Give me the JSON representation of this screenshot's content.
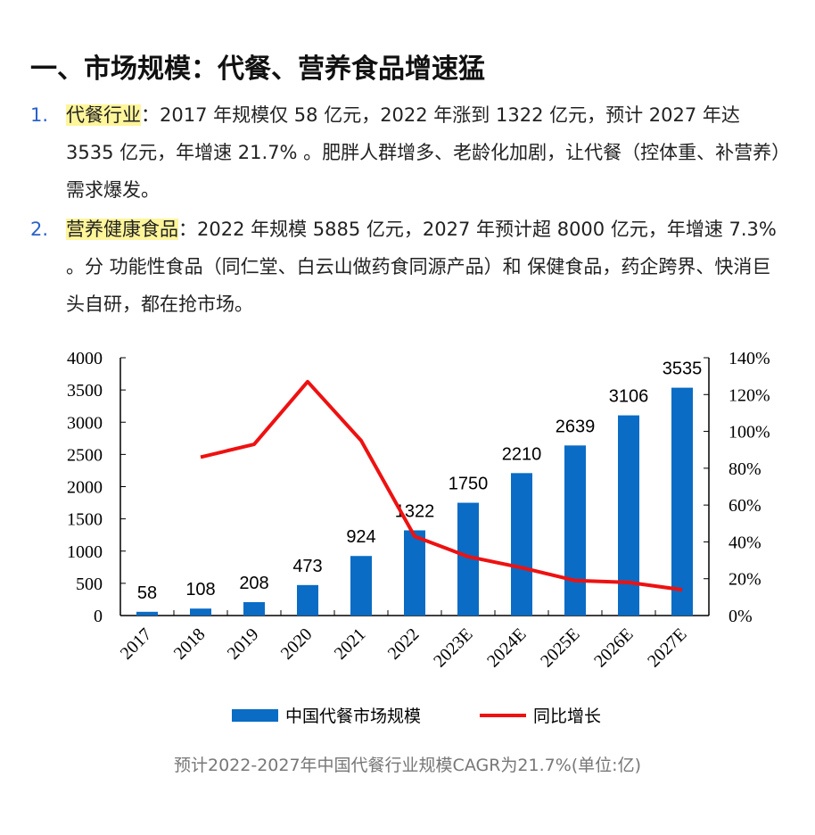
{
  "title": "一、市场规模：代餐、营养食品增速猛",
  "items": [
    {
      "num": "1.",
      "highlight": "代餐行业",
      "text": "：2017 年规模仅 58 亿元，2022 年涨到 1322 亿元，预计 2027 年达 3535 亿元，年增速 21.7% 。肥胖人群增多、老龄化加剧，让代餐（控体重、补营养）需求爆发。"
    },
    {
      "num": "2.",
      "highlight": "营养健康食品",
      "text": "：2022 年规模 5885 亿元，2027 年预计超 8000 亿元，年增速 7.3% 。分 功能性食品（同仁堂、白云山做药食同源产品）和 保健食品，药企跨界、快消巨头自研，都在抢市场。"
    }
  ],
  "caption": "预计2022-2027年中国代餐行业规模CAGR为21.7%(单位:亿)",
  "chart_data": {
    "type": "bar+line",
    "categories": [
      "2017",
      "2018",
      "2019",
      "2020",
      "2021",
      "2022",
      "2023E",
      "2024E",
      "2025E",
      "2026E",
      "2027E"
    ],
    "series": [
      {
        "name": "中国代餐市场规模",
        "type": "bar",
        "axis": "left",
        "color": "#0a6cc4",
        "values": [
          58,
          108,
          208,
          473,
          924,
          1322,
          1750,
          2210,
          2639,
          3106,
          3535
        ],
        "labels": [
          "58",
          "108",
          "208",
          "473",
          "924",
          "1322",
          "1750",
          "2210",
          "2639",
          "3106",
          "3535"
        ]
      },
      {
        "name": "同比增长",
        "type": "line",
        "axis": "right",
        "color": "#ee1111",
        "values": [
          null,
          86,
          93,
          127,
          95,
          43,
          32,
          26,
          19,
          18,
          14
        ]
      }
    ],
    "left_axis": {
      "min": 0,
      "max": 4000,
      "ticks": [
        "0",
        "500",
        "1000",
        "1500",
        "2000",
        "2500",
        "3000",
        "3500",
        "4000"
      ]
    },
    "right_axis": {
      "min": 0,
      "max": 140,
      "unit": "%",
      "ticks": [
        "0%",
        "20%",
        "40%",
        "60%",
        "80%",
        "100%",
        "120%",
        "140%"
      ]
    },
    "grid": false,
    "legend": "bottom"
  }
}
